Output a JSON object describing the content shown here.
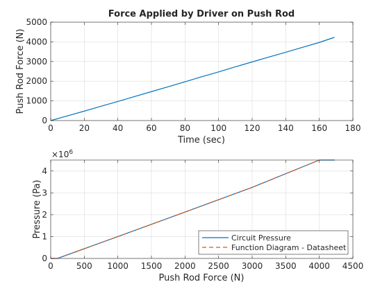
{
  "chart_data": [
    {
      "type": "line",
      "title": "Force Applied by Driver on Push Rod",
      "xlabel": "Time (sec)",
      "ylabel": "Push Rod Force (N)",
      "xlim": [
        0,
        180
      ],
      "ylim": [
        0,
        5000
      ],
      "xticks": [
        0,
        20,
        40,
        60,
        80,
        100,
        120,
        140,
        160,
        180
      ],
      "yticks": [
        0,
        1000,
        2000,
        3000,
        4000,
        5000
      ],
      "grid": true,
      "series": [
        {
          "color": "#0072bd",
          "x": [
            0,
            10,
            20,
            30,
            40,
            50,
            60,
            70,
            80,
            90,
            100,
            110,
            120,
            130,
            140,
            150,
            160,
            169
          ],
          "y": [
            0,
            240,
            480,
            730,
            970,
            1220,
            1470,
            1720,
            1970,
            2230,
            2470,
            2730,
            2980,
            3230,
            3470,
            3720,
            3970,
            4230
          ]
        }
      ]
    },
    {
      "type": "line",
      "title": "",
      "xlabel": "Push Rod Force (N)",
      "ylabel": "Pressure (Pa)",
      "y_exponent_label": "×10",
      "y_exponent": "6",
      "xlim": [
        0,
        4500
      ],
      "ylim": [
        0,
        4.5
      ],
      "xticks": [
        0,
        500,
        1000,
        1500,
        2000,
        2500,
        3000,
        3500,
        4000,
        4500
      ],
      "yticks": [
        0,
        1,
        2,
        3,
        4
      ],
      "grid": true,
      "legend_position": "bottom-right",
      "series": [
        {
          "name": "Circuit Pressure",
          "color": "#0072bd",
          "style": "solid",
          "x": [
            0,
            100,
            1000,
            2000,
            3000,
            4000,
            4230
          ],
          "y": [
            0,
            0,
            1.0,
            2.12,
            3.25,
            4.5,
            4.5
          ]
        },
        {
          "name": "Function Diagram - Datasheet",
          "color": "#d95319",
          "style": "dashed",
          "x": [
            0,
            100,
            1000,
            2000,
            3000,
            4000
          ],
          "y": [
            0,
            0,
            1.0,
            2.12,
            3.25,
            4.5
          ]
        }
      ]
    }
  ]
}
